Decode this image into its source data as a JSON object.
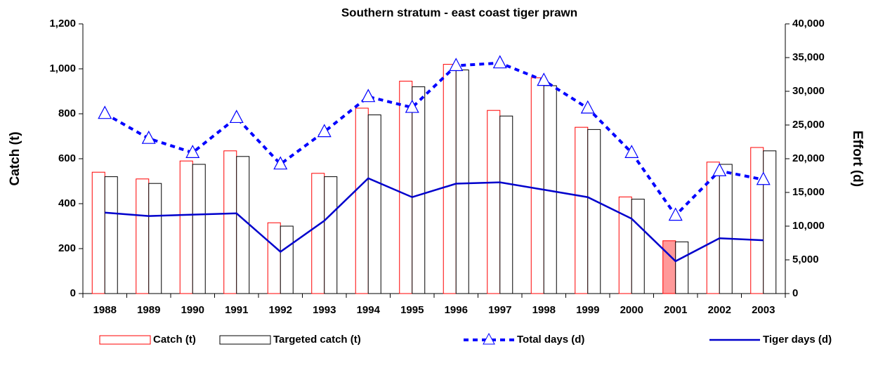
{
  "chart_data": {
    "type": "combo",
    "title": "Southern stratum - east coast tiger prawn",
    "y_label": "Catch (t)",
    "y2_label": "Effort (d)",
    "categories": [
      "1988",
      "1989",
      "1990",
      "1991",
      "1992",
      "1993",
      "1994",
      "1995",
      "1996",
      "1997",
      "1998",
      "1999",
      "2000",
      "2001",
      "2002",
      "2003"
    ],
    "ylim": [
      0,
      1200
    ],
    "yticks": [
      0,
      200,
      400,
      600,
      800,
      {
        "value": 1000,
        "label": "1,000"
      },
      {
        "value": 1200,
        "label": "1,200"
      }
    ],
    "y2lim": [
      0,
      40000
    ],
    "y2ticks": [
      0,
      {
        "value": 5000,
        "label": "5,000"
      },
      {
        "value": 10000,
        "label": "10,000"
      },
      {
        "value": 15000,
        "label": "15,000"
      },
      {
        "value": 20000,
        "label": "20,000"
      },
      {
        "value": 25000,
        "label": "25,000"
      },
      {
        "value": 30000,
        "label": "30,000"
      },
      {
        "value": 35000,
        "label": "35,000"
      },
      {
        "value": 40000,
        "label": "40,000"
      }
    ],
    "legend": "bottom",
    "series": [
      {
        "name": "Catch (t)",
        "type": "bar",
        "color": "#ff0000",
        "highlight": {
          "category": "2001",
          "fill": "#ff9999"
        },
        "values": [
          540,
          510,
          590,
          635,
          315,
          535,
          825,
          945,
          1020,
          815,
          960,
          740,
          430,
          235,
          585,
          650
        ]
      },
      {
        "name": "Targeted catch (t)",
        "type": "bar",
        "color": "#000000",
        "values": [
          520,
          490,
          575,
          610,
          300,
          520,
          795,
          920,
          995,
          790,
          925,
          730,
          420,
          230,
          575,
          635
        ]
      },
      {
        "name": "Total days (d)",
        "type": "line",
        "axis": "y2",
        "color": "#0000ff",
        "dashed": true,
        "marker": "triangle",
        "values": [
          26700,
          23000,
          20900,
          26100,
          19200,
          24000,
          29200,
          27600,
          33800,
          34200,
          31600,
          27500,
          20900,
          11600,
          18200,
          16900
        ]
      },
      {
        "name": "Tiger days (d)",
        "type": "line",
        "axis": "y2",
        "color": "#0000cc",
        "values": [
          12000,
          11500,
          11700,
          11900,
          6200,
          10800,
          17100,
          14300,
          16300,
          16500,
          15400,
          14300,
          11100,
          4800,
          8200,
          7900
        ]
      }
    ]
  }
}
